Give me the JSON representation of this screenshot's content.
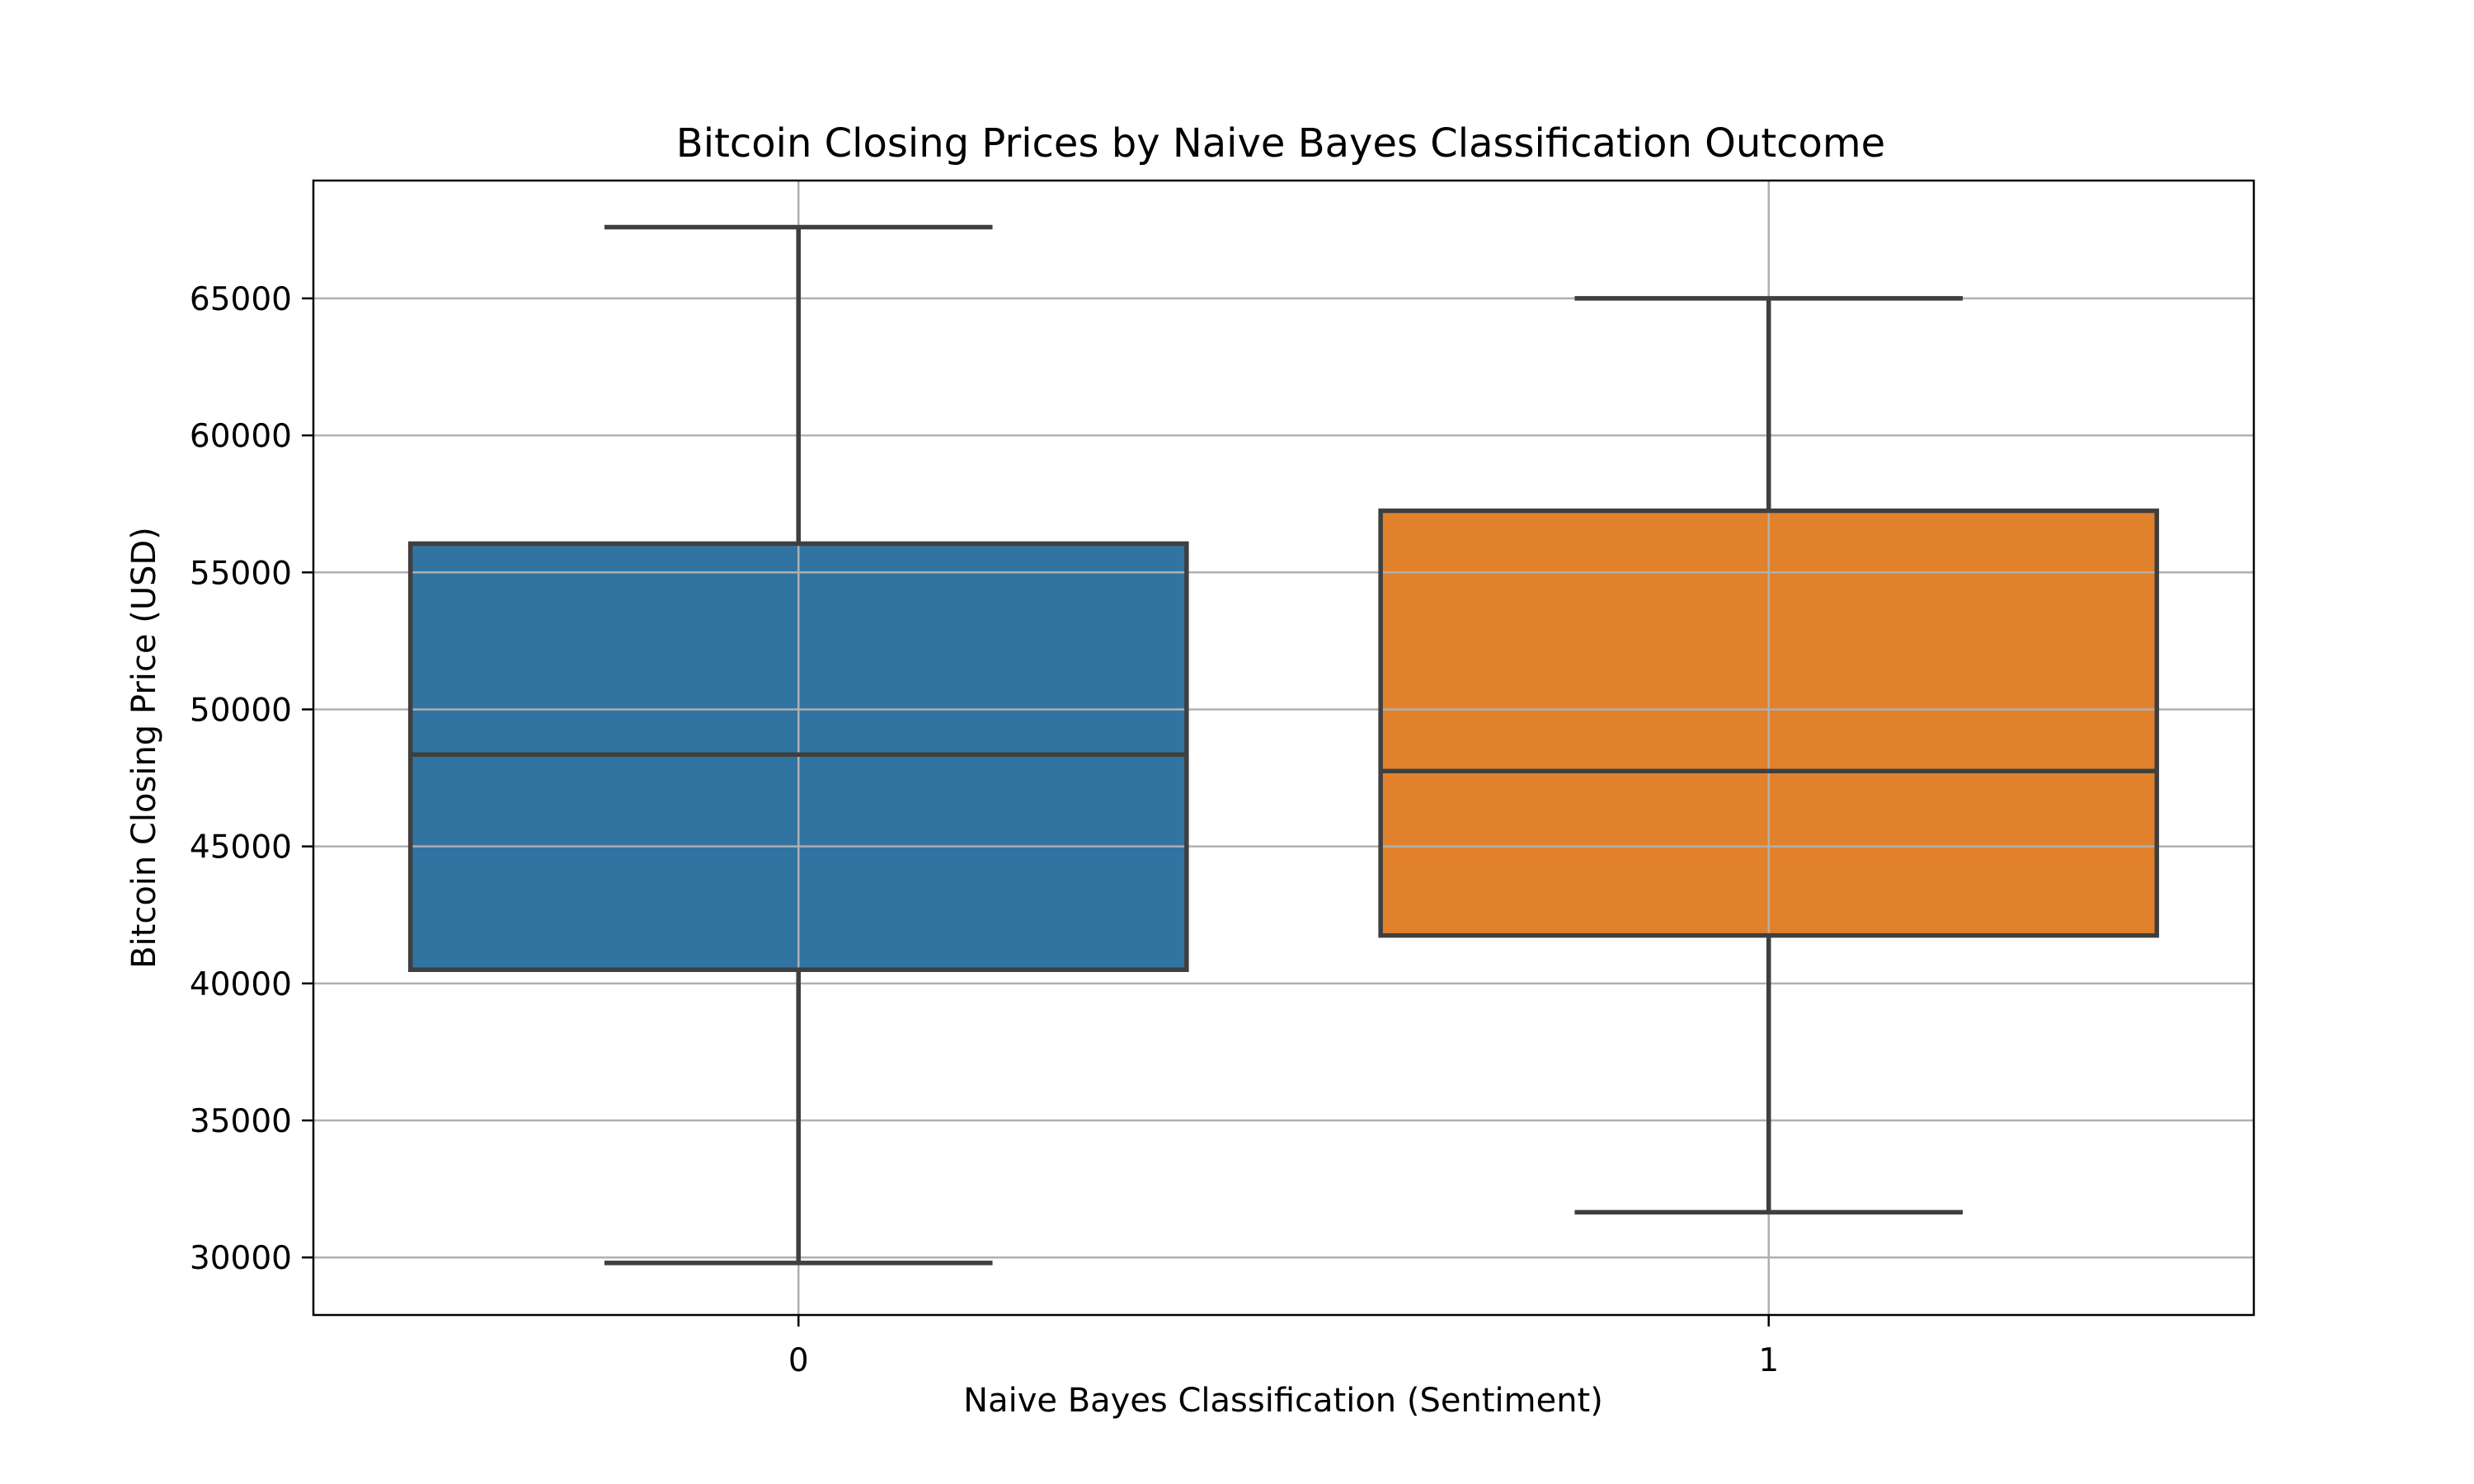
{
  "chart_data": {
    "type": "box",
    "title": "Bitcoin Closing Prices by Naive Bayes Classification Outcome",
    "xlabel": "Naive Bayes Classification (Sentiment)",
    "ylabel": "Bitcoin Closing Price (USD)",
    "ylim": [
      27900,
      69300
    ],
    "yticks": [
      30000,
      35000,
      40000,
      45000,
      50000,
      55000,
      60000,
      65000
    ],
    "grid": true,
    "categories": [
      "0",
      "1"
    ],
    "boxes": [
      {
        "category": "0",
        "whisker_low": 29800,
        "q1": 40500,
        "median": 48350,
        "q3": 56050,
        "whisker_high": 67600,
        "color": "#3274a1"
      },
      {
        "category": "1",
        "whisker_low": 31650,
        "q1": 41750,
        "median": 47750,
        "q3": 57250,
        "whisker_high": 65000,
        "color": "#e1812c"
      }
    ]
  }
}
